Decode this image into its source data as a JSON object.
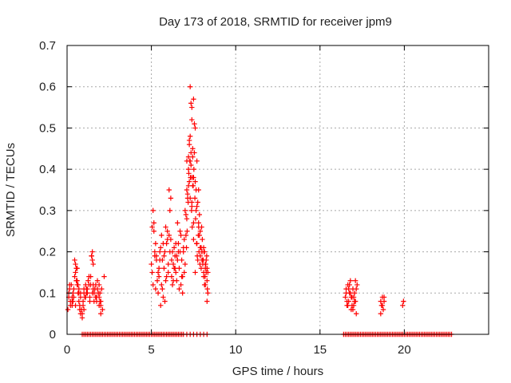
{
  "chart_data": {
    "type": "scatter",
    "title": "Day 173 of 2018, SRMTID for receiver jpm9",
    "xlabel": "GPS time / hours",
    "ylabel": "SRMTID / TECUs",
    "xlim": [
      0,
      25
    ],
    "ylim": [
      0,
      0.7
    ],
    "xticks": [
      0,
      5,
      10,
      15,
      20
    ],
    "xtick_labels": [
      "0",
      "5",
      "10",
      "15",
      "20"
    ],
    "yticks": [
      0,
      0.1,
      0.2,
      0.3,
      0.4,
      0.5,
      0.6,
      0.7
    ],
    "ytick_labels": [
      "0",
      "0.1",
      "0.2",
      "0.3",
      "0.4",
      "0.5",
      "0.6",
      "0.7"
    ],
    "grid": true,
    "marker": "+",
    "marker_color": "#ff0000",
    "series": [
      {
        "name": "SRMTID",
        "x": [
          0.05,
          0.1,
          0.15,
          0.2,
          0.25,
          0.3,
          0.35,
          0.4,
          0.45,
          0.5,
          0.55,
          0.6,
          0.65,
          0.7,
          0.75,
          0.8,
          0.85,
          0.9,
          0.95,
          1.0,
          1.05,
          1.1,
          1.15,
          1.2,
          1.25,
          1.3,
          1.35,
          1.4,
          1.45,
          1.5,
          1.55,
          1.6,
          1.65,
          1.7,
          1.75,
          1.8,
          1.85,
          1.9,
          1.95,
          2.0,
          2.05,
          2.1,
          2.2,
          0.1,
          0.2,
          0.3,
          0.4,
          0.5,
          0.6,
          0.7,
          0.8,
          0.9,
          1.0,
          1.1,
          1.2,
          1.3,
          1.4,
          1.5,
          1.6,
          1.7,
          1.8,
          1.9,
          2.0,
          0.15,
          0.35,
          0.55,
          0.75,
          0.95,
          1.15,
          1.35,
          1.55,
          1.75,
          1.95,
          0.45,
          0.55,
          0.6,
          0.65,
          0.7,
          1.45,
          1.5,
          1.55,
          0.3,
          0.5,
          0.8,
          1.0,
          1.2,
          1.7,
          1.9,
          2.0,
          5.0,
          5.05,
          5.1,
          5.15,
          5.2,
          5.25,
          5.3,
          5.35,
          5.4,
          5.45,
          5.5,
          5.55,
          5.6,
          5.65,
          5.7,
          5.75,
          5.8,
          5.85,
          5.9,
          5.95,
          6.0,
          6.05,
          6.1,
          6.15,
          6.2,
          6.25,
          6.3,
          6.35,
          6.4,
          6.45,
          6.5,
          6.55,
          6.6,
          6.65,
          6.7,
          6.75,
          6.8,
          6.85,
          6.9,
          6.95,
          5.1,
          5.3,
          5.5,
          5.7,
          5.9,
          6.1,
          6.3,
          6.5,
          6.7,
          6.9,
          5.2,
          5.4,
          5.6,
          5.8,
          6.0,
          6.2,
          6.4,
          6.6,
          6.8,
          5.05,
          5.25,
          5.55,
          5.85,
          6.05,
          6.15,
          6.25,
          6.35,
          6.55,
          6.75,
          6.95,
          5.15,
          5.45,
          5.75,
          6.45,
          6.65,
          6.85,
          5.65,
          5.95,
          7.0,
          7.05,
          7.1,
          7.15,
          7.2,
          7.25,
          7.3,
          7.35,
          7.4,
          7.45,
          7.5,
          7.55,
          7.6,
          7.65,
          7.7,
          7.75,
          7.8,
          7.85,
          7.9,
          7.95,
          8.0,
          8.05,
          8.1,
          8.15,
          8.2,
          8.25,
          8.3,
          8.35,
          7.0,
          7.1,
          7.2,
          7.3,
          7.4,
          7.5,
          7.6,
          7.7,
          7.8,
          7.9,
          8.0,
          8.1,
          8.2,
          8.3,
          7.05,
          7.15,
          7.25,
          7.35,
          7.45,
          7.55,
          7.65,
          7.75,
          7.85,
          7.95,
          8.05,
          8.15,
          8.25,
          8.35,
          7.08,
          7.12,
          7.18,
          7.22,
          7.28,
          7.32,
          7.38,
          7.42,
          7.48,
          7.52,
          7.58,
          7.62,
          7.68,
          7.72,
          7.78,
          7.82,
          7.88,
          7.92,
          7.98,
          8.02,
          8.08,
          8.12,
          8.18,
          8.22,
          8.28,
          8.32,
          7.1,
          7.2,
          7.25,
          7.3,
          7.35,
          7.4,
          7.45,
          7.5,
          7.6,
          7.7,
          7.8,
          7.9,
          8.0,
          8.1,
          8.2,
          8.3,
          7.3,
          7.35,
          7.4,
          7.45,
          7.5,
          16.5,
          16.55,
          16.6,
          16.65,
          16.7,
          16.75,
          16.8,
          16.85,
          16.9,
          16.95,
          17.0,
          17.05,
          17.1,
          17.15,
          17.2,
          16.55,
          16.65,
          16.75,
          16.85,
          16.95,
          17.05,
          17.15,
          16.6,
          16.7,
          16.8,
          16.9,
          17.0,
          17.1,
          18.6,
          18.65,
          18.7,
          18.75,
          18.8,
          18.6,
          18.7,
          18.8,
          19.9,
          19.95,
          0.9,
          1.0,
          1.1,
          1.2,
          1.3,
          1.4,
          1.5,
          1.6,
          1.7,
          1.8,
          1.9,
          2.0,
          2.1,
          2.2,
          2.3,
          2.4,
          2.5,
          2.6,
          2.7,
          2.8,
          2.9,
          3.0,
          3.1,
          3.2,
          3.3,
          3.4,
          3.5,
          3.6,
          3.7,
          3.8,
          3.9,
          4.0,
          4.1,
          4.2,
          4.3,
          4.4,
          4.5,
          4.6,
          4.7,
          4.8,
          4.9,
          5.0,
          5.1,
          5.2,
          5.3,
          5.4,
          5.5,
          5.6,
          5.7,
          5.8,
          5.9,
          6.0,
          6.1,
          6.2,
          6.3,
          6.4,
          6.5,
          6.6,
          6.7,
          6.8,
          6.9,
          7.1,
          7.3,
          7.5,
          7.7,
          7.9,
          8.1,
          8.3,
          16.4,
          16.5,
          16.6,
          16.7,
          16.8,
          16.9,
          17.0,
          17.1,
          17.2,
          17.3,
          17.4,
          17.5,
          17.6,
          17.7,
          17.8,
          17.9,
          18.0,
          18.1,
          18.2,
          18.3,
          18.4,
          18.5,
          18.6,
          18.7,
          18.8,
          18.9,
          19.0,
          19.1,
          19.2,
          19.3,
          19.4,
          19.5,
          19.6,
          19.7,
          19.8,
          19.9,
          20.0,
          20.1,
          20.2,
          20.3,
          20.4,
          20.5,
          20.6,
          20.7,
          20.8,
          20.9,
          21.0,
          21.1,
          21.2,
          21.3,
          21.4,
          21.5,
          21.6,
          21.7,
          21.8,
          21.9,
          22.0,
          22.1,
          22.2,
          22.3,
          22.4,
          22.5,
          22.6,
          22.7,
          22.8
        ],
        "y": [
          0.06,
          0.09,
          0.11,
          0.08,
          0.12,
          0.07,
          0.1,
          0.09,
          0.14,
          0.17,
          0.13,
          0.12,
          0.1,
          0.08,
          0.07,
          0.09,
          0.06,
          0.05,
          0.08,
          0.1,
          0.09,
          0.12,
          0.11,
          0.1,
          0.13,
          0.12,
          0.09,
          0.14,
          0.19,
          0.2,
          0.12,
          0.1,
          0.11,
          0.09,
          0.08,
          0.13,
          0.1,
          0.12,
          0.08,
          0.07,
          0.11,
          0.06,
          0.14,
          0.1,
          0.07,
          0.09,
          0.11,
          0.15,
          0.16,
          0.11,
          0.05,
          0.04,
          0.06,
          0.09,
          0.11,
          0.14,
          0.12,
          0.1,
          0.08,
          0.09,
          0.11,
          0.07,
          0.05,
          0.12,
          0.08,
          0.13,
          0.06,
          0.07,
          0.1,
          0.08,
          0.11,
          0.09,
          0.1,
          0.18,
          0.16,
          0.13,
          0.12,
          0.1,
          0.19,
          0.18,
          0.17,
          0.08,
          0.07,
          0.1,
          0.11,
          0.1,
          0.12,
          0.09,
          0.08,
          0.17,
          0.15,
          0.3,
          0.25,
          0.2,
          0.22,
          0.19,
          0.13,
          0.1,
          0.14,
          0.18,
          0.21,
          0.24,
          0.11,
          0.09,
          0.16,
          0.2,
          0.26,
          0.22,
          0.25,
          0.15,
          0.35,
          0.3,
          0.23,
          0.18,
          0.12,
          0.17,
          0.21,
          0.19,
          0.15,
          0.13,
          0.27,
          0.22,
          0.16,
          0.2,
          0.24,
          0.18,
          0.14,
          0.21,
          0.23,
          0.12,
          0.18,
          0.2,
          0.22,
          0.14,
          0.2,
          0.13,
          0.19,
          0.25,
          0.2,
          0.19,
          0.15,
          0.12,
          0.08,
          0.17,
          0.14,
          0.16,
          0.2,
          0.14,
          0.26,
          0.11,
          0.07,
          0.13,
          0.24,
          0.33,
          0.2,
          0.16,
          0.18,
          0.12,
          0.15,
          0.27,
          0.16,
          0.19,
          0.22,
          0.11,
          0.1,
          0.18,
          0.23,
          0.17,
          0.24,
          0.28,
          0.34,
          0.4,
          0.46,
          0.42,
          0.38,
          0.32,
          0.36,
          0.27,
          0.44,
          0.37,
          0.3,
          0.22,
          0.18,
          0.26,
          0.24,
          0.19,
          0.16,
          0.2,
          0.17,
          0.14,
          0.12,
          0.16,
          0.18,
          0.13,
          0.1,
          0.3,
          0.35,
          0.43,
          0.48,
          0.55,
          0.57,
          0.5,
          0.42,
          0.35,
          0.25,
          0.2,
          0.21,
          0.12,
          0.16,
          0.29,
          0.33,
          0.37,
          0.44,
          0.43,
          0.51,
          0.35,
          0.32,
          0.29,
          0.21,
          0.18,
          0.2,
          0.15,
          0.15,
          0.21,
          0.25,
          0.32,
          0.39,
          0.42,
          0.38,
          0.3,
          0.26,
          0.36,
          0.4,
          0.33,
          0.28,
          0.22,
          0.19,
          0.24,
          0.2,
          0.17,
          0.21,
          0.26,
          0.23,
          0.18,
          0.2,
          0.14,
          0.17,
          0.19,
          0.11,
          0.42,
          0.36,
          0.47,
          0.33,
          0.41,
          0.31,
          0.38,
          0.23,
          0.15,
          0.31,
          0.27,
          0.21,
          0.18,
          0.15,
          0.17,
          0.08,
          0.6,
          0.56,
          0.52,
          0.45,
          0.38,
          0.09,
          0.11,
          0.07,
          0.12,
          0.08,
          0.1,
          0.13,
          0.06,
          0.09,
          0.11,
          0.07,
          0.1,
          0.08,
          0.05,
          0.12,
          0.1,
          0.07,
          0.12,
          0.09,
          0.06,
          0.08,
          0.11,
          0.08,
          0.11,
          0.1,
          0.07,
          0.09,
          0.13,
          0.08,
          0.07,
          0.09,
          0.06,
          0.08,
          0.05,
          0.07,
          0.09,
          0.07,
          0.08,
          0,
          0,
          0,
          0,
          0,
          0,
          0,
          0,
          0,
          0,
          0,
          0,
          0,
          0,
          0,
          0,
          0,
          0,
          0,
          0,
          0,
          0,
          0,
          0,
          0,
          0,
          0,
          0,
          0,
          0,
          0,
          0,
          0,
          0,
          0,
          0,
          0,
          0,
          0,
          0,
          0,
          0,
          0,
          0,
          0,
          0,
          0,
          0,
          0,
          0,
          0,
          0,
          0,
          0,
          0,
          0,
          0,
          0,
          0,
          0,
          0,
          0,
          0,
          0,
          0,
          0,
          0,
          0,
          0,
          0,
          0,
          0,
          0,
          0,
          0,
          0,
          0,
          0,
          0,
          0,
          0,
          0,
          0,
          0,
          0,
          0,
          0,
          0,
          0,
          0,
          0,
          0,
          0,
          0,
          0,
          0,
          0,
          0,
          0,
          0,
          0,
          0,
          0,
          0,
          0,
          0,
          0,
          0,
          0,
          0,
          0,
          0,
          0,
          0,
          0,
          0,
          0,
          0,
          0,
          0,
          0,
          0,
          0,
          0,
          0,
          0,
          0,
          0,
          0,
          0,
          0,
          0,
          0
        ]
      }
    ]
  }
}
